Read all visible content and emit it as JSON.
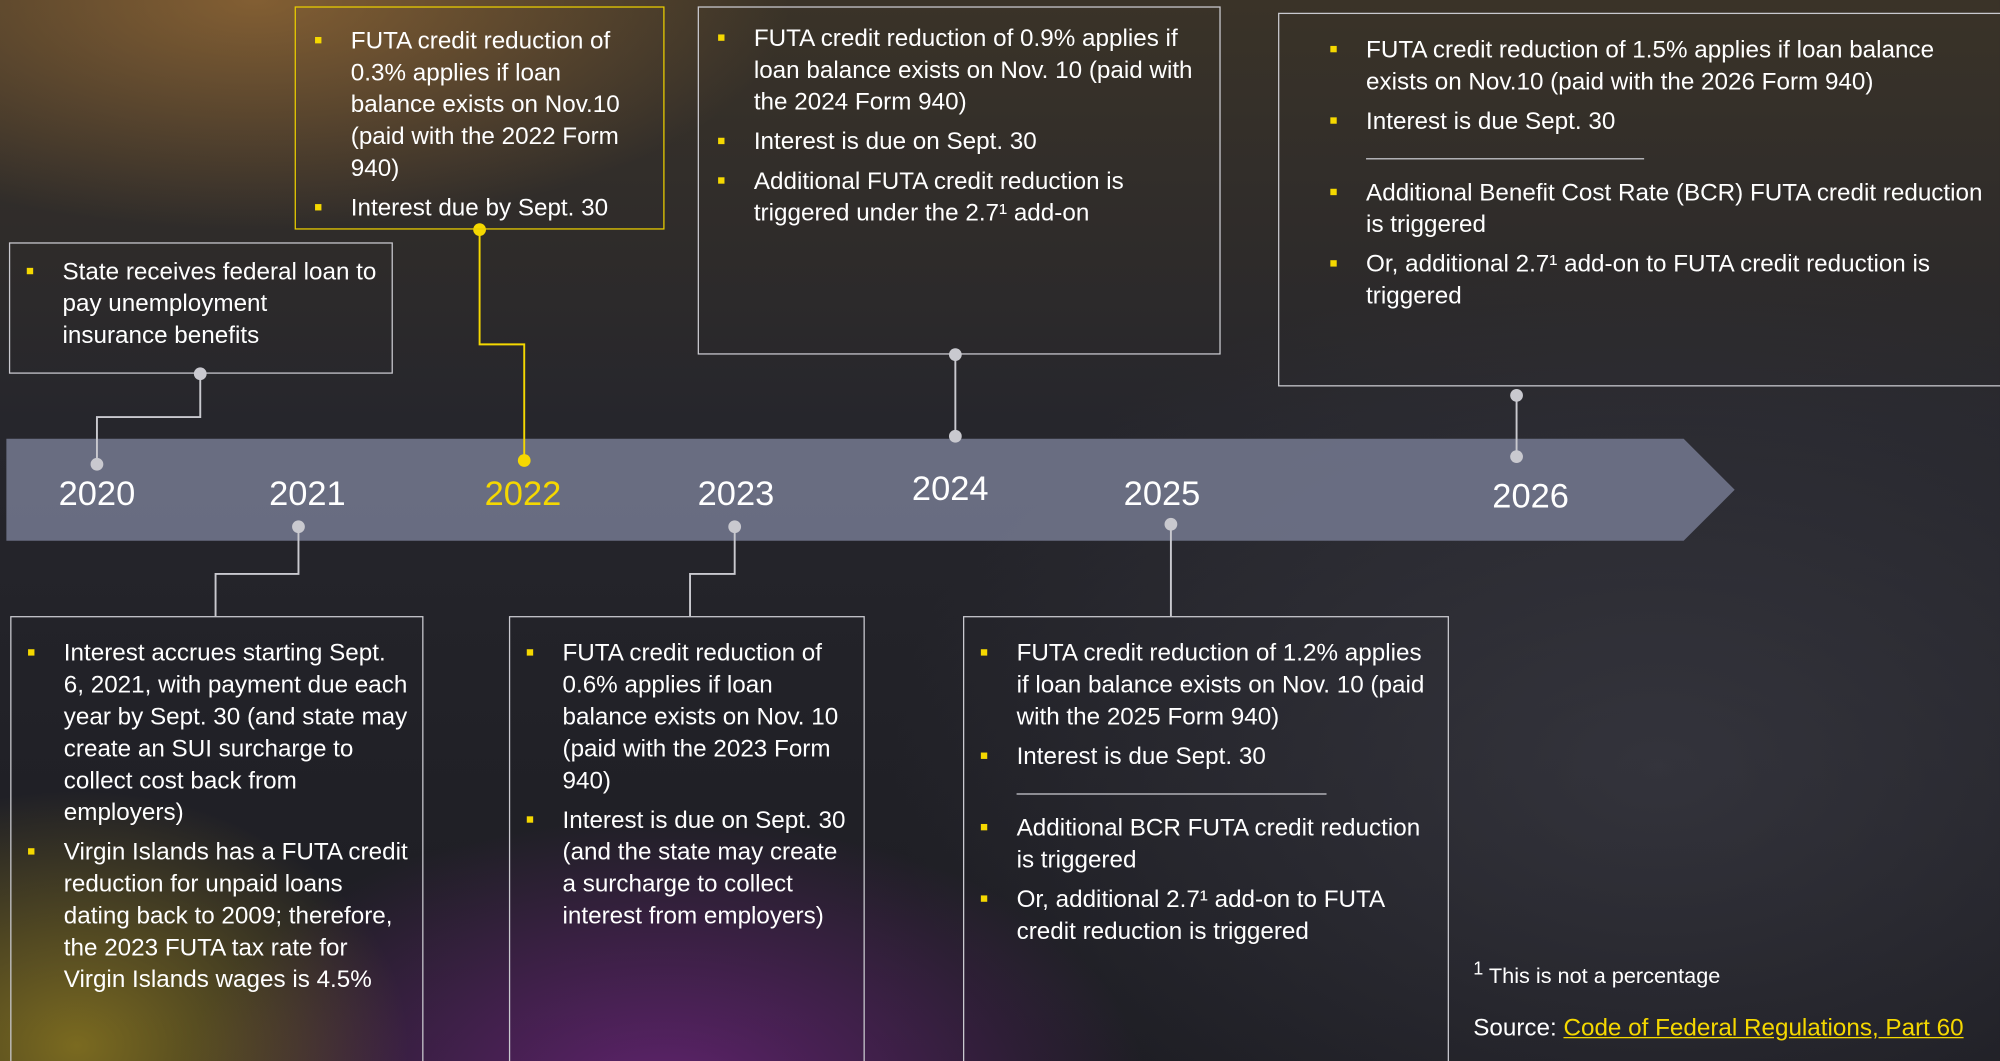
{
  "timeline": {
    "years": [
      "2020",
      "2021",
      "2022",
      "2023",
      "2024",
      "2025",
      "2026"
    ]
  },
  "boxes": [
    {
      "groups": [
        [
          "State receives federal loan to pay unemployment insurance benefits"
        ]
      ]
    },
    {
      "groups": [
        [
          "FUTA credit reduction of 0.3% applies if loan balance exists on Nov.10 (paid with the 2022 Form 940)",
          "Interest due by Sept. 30"
        ]
      ]
    },
    {
      "groups": [
        [
          "FUTA credit reduction of 0.9% applies if loan balance exists on Nov. 10 (paid with the 2024 Form 940)",
          "Interest is due on Sept. 30",
          "Additional FUTA credit reduction is triggered under the 2.7¹ add-on"
        ]
      ]
    },
    {
      "groups": [
        [
          "FUTA credit reduction of 1.5% applies if loan balance exists on Nov.10 (paid with the 2026 Form 940)",
          "Interest is due Sept. 30"
        ],
        [
          "Additional Benefit Cost Rate (BCR) FUTA credit reduction is triggered",
          "Or, additional 2.7¹ add-on to  FUTA credit reduction is triggered"
        ]
      ]
    },
    {
      "groups": [
        [
          "Interest accrues starting Sept. 6, 2021, with payment due each year by Sept. 30 (and state may create an SUI surcharge to collect cost back from employers)",
          "Virgin Islands has a FUTA credit reduction for unpaid loans dating back to 2009; therefore, the 2023 FUTA tax rate for Virgin Islands wages is 4.5%"
        ]
      ]
    },
    {
      "groups": [
        [
          "FUTA credit reduction of 0.6% applies if loan balance exists on Nov. 10 (paid with the 2023 Form 940)",
          "Interest is due on Sept. 30 (and the state may create a surcharge to collect interest from employers)"
        ]
      ]
    },
    {
      "groups": [
        [
          "FUTA credit reduction of 1.2% applies if loan balance exists on Nov. 10 (paid with the 2025 Form 940)",
          "Interest is due Sept. 30"
        ],
        [
          "Additional BCR FUTA credit reduction is triggered",
          "Or, additional 2.7¹ add-on to FUTA credit reduction is triggered"
        ]
      ]
    }
  ],
  "footnote": {
    "marker": "1",
    "text": "This is not a percentage"
  },
  "source": {
    "label": "Source:",
    "link": "Code of Federal Regulations, Part 60"
  }
}
